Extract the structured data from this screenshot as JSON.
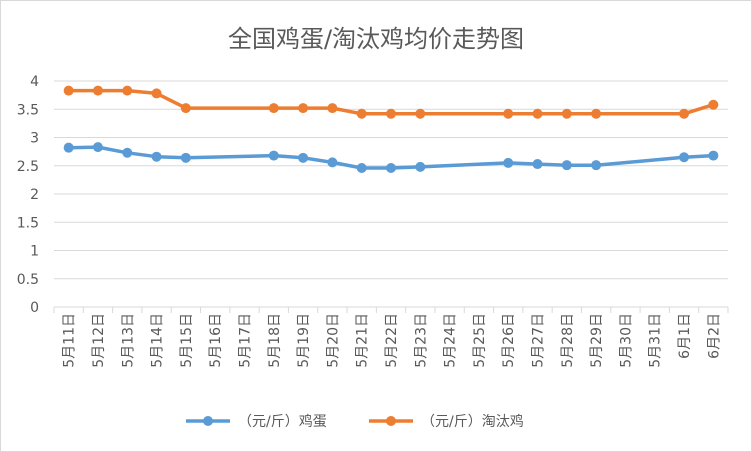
{
  "chart_data": {
    "type": "line",
    "title": "全国鸡蛋/淘汰鸡均价走势图",
    "categories": [
      "5月11日",
      "5月12日",
      "5月13日",
      "5月14日",
      "5月15日",
      "5月16日",
      "5月17日",
      "5月18日",
      "5月19日",
      "5月20日",
      "5月21日",
      "5月22日",
      "5月23日",
      "5月24日",
      "5月25日",
      "5月26日",
      "5月27日",
      "5月28日",
      "5月29日",
      "5月30日",
      "5月31日",
      "6月1日",
      "6月2日"
    ],
    "ylim": [
      0,
      4
    ],
    "yticks": [
      "0",
      "0.5",
      "1",
      "1.5",
      "2",
      "2.5",
      "3",
      "3.5",
      "4"
    ],
    "grid": true,
    "legend_position": "bottom",
    "series": [
      {
        "name": "（元/斤）鸡蛋",
        "color": "#5b9bd5",
        "values": [
          2.82,
          2.83,
          2.73,
          2.66,
          2.64,
          null,
          null,
          2.68,
          2.64,
          2.56,
          2.46,
          2.46,
          2.48,
          null,
          null,
          2.55,
          2.53,
          2.51,
          2.51,
          null,
          null,
          2.65,
          2.68
        ]
      },
      {
        "name": "（元/斤）淘汰鸡",
        "color": "#ed7d31",
        "values": [
          3.83,
          3.83,
          3.83,
          3.78,
          3.52,
          null,
          null,
          3.52,
          3.52,
          3.52,
          3.42,
          3.42,
          3.42,
          null,
          null,
          3.42,
          3.42,
          3.42,
          3.42,
          null,
          null,
          3.42,
          3.58
        ]
      }
    ]
  }
}
